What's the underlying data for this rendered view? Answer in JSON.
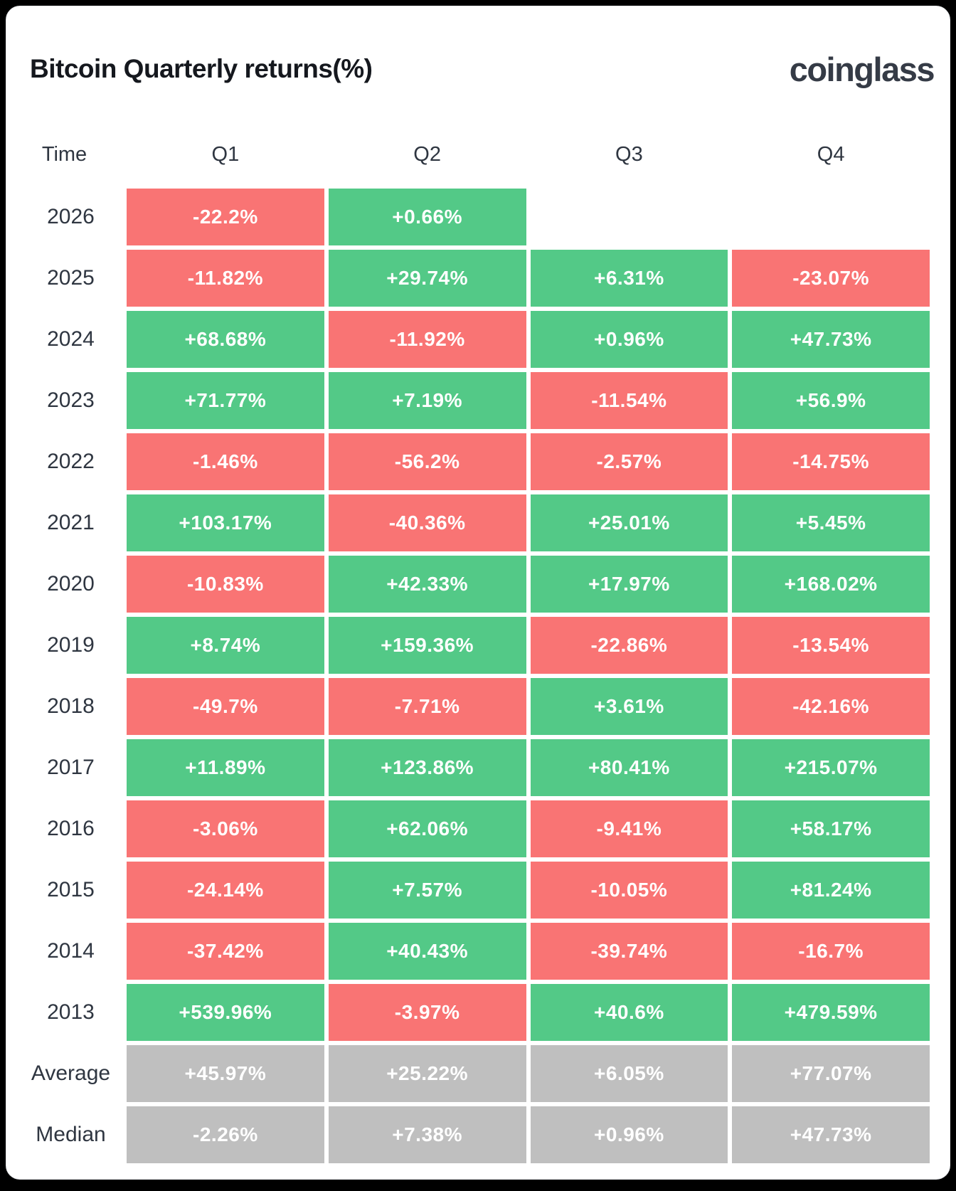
{
  "header": {
    "title": "Bitcoin Quarterly returns(%)",
    "logo": "coinglass"
  },
  "colors": {
    "page_bg": "#000000",
    "card_bg": "#ffffff",
    "title_text": "#15181e",
    "logo_text": "#353b46",
    "label_text": "#2f3641",
    "cell_text": "#ffffff",
    "positive": "#53c987",
    "negative": "#f97474",
    "summary": "#bfbfbf"
  },
  "chart_data": {
    "type": "heatmap",
    "title": "Bitcoin Quarterly returns(%)",
    "time_label": "Time",
    "columns": [
      "Q1",
      "Q2",
      "Q3",
      "Q4"
    ],
    "color_rule": "positive values green, negative values red, summary rows gray",
    "rows": [
      {
        "label": "2026",
        "summary": false,
        "values": [
          "-22.2%",
          "+0.66%",
          null,
          null
        ]
      },
      {
        "label": "2025",
        "summary": false,
        "values": [
          "-11.82%",
          "+29.74%",
          "+6.31%",
          "-23.07%"
        ]
      },
      {
        "label": "2024",
        "summary": false,
        "values": [
          "+68.68%",
          "-11.92%",
          "+0.96%",
          "+47.73%"
        ]
      },
      {
        "label": "2023",
        "summary": false,
        "values": [
          "+71.77%",
          "+7.19%",
          "-11.54%",
          "+56.9%"
        ]
      },
      {
        "label": "2022",
        "summary": false,
        "values": [
          "-1.46%",
          "-56.2%",
          "-2.57%",
          "-14.75%"
        ]
      },
      {
        "label": "2021",
        "summary": false,
        "values": [
          "+103.17%",
          "-40.36%",
          "+25.01%",
          "+5.45%"
        ]
      },
      {
        "label": "2020",
        "summary": false,
        "values": [
          "-10.83%",
          "+42.33%",
          "+17.97%",
          "+168.02%"
        ]
      },
      {
        "label": "2019",
        "summary": false,
        "values": [
          "+8.74%",
          "+159.36%",
          "-22.86%",
          "-13.54%"
        ]
      },
      {
        "label": "2018",
        "summary": false,
        "values": [
          "-49.7%",
          "-7.71%",
          "+3.61%",
          "-42.16%"
        ]
      },
      {
        "label": "2017",
        "summary": false,
        "values": [
          "+11.89%",
          "+123.86%",
          "+80.41%",
          "+215.07%"
        ]
      },
      {
        "label": "2016",
        "summary": false,
        "values": [
          "-3.06%",
          "+62.06%",
          "-9.41%",
          "+58.17%"
        ]
      },
      {
        "label": "2015",
        "summary": false,
        "values": [
          "-24.14%",
          "+7.57%",
          "-10.05%",
          "+81.24%"
        ]
      },
      {
        "label": "2014",
        "summary": false,
        "values": [
          "-37.42%",
          "+40.43%",
          "-39.74%",
          "-16.7%"
        ]
      },
      {
        "label": "2013",
        "summary": false,
        "values": [
          "+539.96%",
          "-3.97%",
          "+40.6%",
          "+479.59%"
        ]
      },
      {
        "label": "Average",
        "summary": true,
        "values": [
          "+45.97%",
          "+25.22%",
          "+6.05%",
          "+77.07%"
        ]
      },
      {
        "label": "Median",
        "summary": true,
        "values": [
          "-2.26%",
          "+7.38%",
          "+0.96%",
          "+47.73%"
        ]
      }
    ]
  }
}
